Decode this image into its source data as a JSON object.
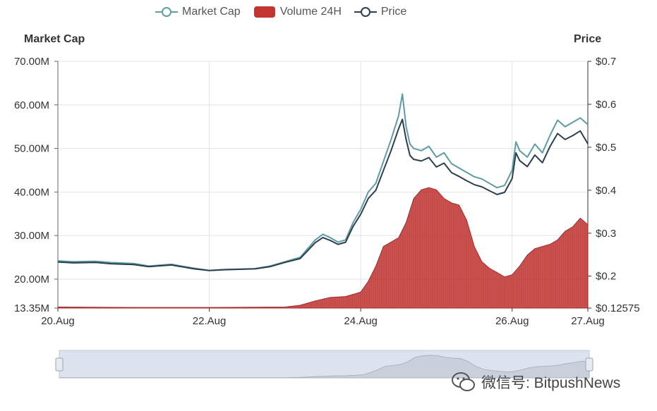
{
  "legend": {
    "market_cap": "Market Cap",
    "volume": "Volume 24H",
    "price": "Price"
  },
  "colors": {
    "market_cap": "#5e9ca4",
    "price": "#2c3e50",
    "volume": "#c23531",
    "grid": "#dfe3ea",
    "zoom_bg": "#dde3ee"
  },
  "watermark": "微信号: BitpushNews",
  "chart_data": {
    "type": "line",
    "title": "",
    "left_axis": {
      "label": "Market Cap",
      "ylim": [
        13.35,
        70
      ],
      "ticks": [
        "13.35M",
        "20.00M",
        "30.00M",
        "40.00M",
        "50.00M",
        "60.00M",
        "70.00M"
      ],
      "tick_values": [
        13.35,
        20,
        30,
        40,
        50,
        60,
        70
      ]
    },
    "right_axis": {
      "label": "Price",
      "ylim": [
        0.12575,
        0.7
      ],
      "ticks": [
        "$0.12575",
        "$0.2",
        "$0.3",
        "$0.4",
        "$0.5",
        "$0.6",
        "$0.7"
      ],
      "tick_values": [
        0.12575,
        0.2,
        0.3,
        0.4,
        0.5,
        0.6,
        0.7
      ]
    },
    "x_axis": {
      "ticks": [
        "20.Aug",
        "22.Aug",
        "24.Aug",
        "26.Aug",
        "27.Aug"
      ],
      "tick_days": [
        0,
        2,
        4,
        6,
        7
      ],
      "xlim": [
        0,
        7
      ]
    },
    "grid": true,
    "legend_position": "top-center",
    "series": [
      {
        "name": "Market Cap",
        "axis": "left",
        "x": [
          0,
          0.2,
          0.5,
          0.7,
          1.0,
          1.2,
          1.5,
          1.8,
          2.0,
          2.2,
          2.4,
          2.6,
          2.8,
          3.0,
          3.2,
          3.4,
          3.5,
          3.6,
          3.7,
          3.8,
          3.9,
          4.0,
          4.1,
          4.2,
          4.3,
          4.4,
          4.5,
          4.55,
          4.6,
          4.65,
          4.7,
          4.8,
          4.9,
          5.0,
          5.1,
          5.2,
          5.3,
          5.4,
          5.5,
          5.6,
          5.7,
          5.8,
          5.9,
          6.0,
          6.05,
          6.1,
          6.2,
          6.3,
          6.4,
          6.5,
          6.6,
          6.7,
          6.8,
          6.9,
          7.0
        ],
        "values": [
          24.2,
          24.0,
          24.1,
          23.8,
          23.6,
          23.0,
          23.4,
          22.5,
          22.0,
          22.2,
          22.3,
          22.4,
          23.0,
          24.0,
          25.0,
          29.0,
          30.3,
          29.5,
          28.5,
          29.0,
          33.0,
          36.0,
          40.0,
          42.0,
          47.0,
          52.0,
          57.5,
          62.5,
          55.0,
          51.0,
          50.0,
          49.5,
          50.5,
          48.0,
          49.0,
          46.5,
          45.5,
          44.5,
          43.5,
          43.0,
          42.0,
          41.0,
          41.5,
          45.0,
          51.5,
          49.5,
          48.0,
          51.0,
          49.0,
          53.0,
          56.5,
          55.0,
          56.0,
          57.0,
          55.5
        ]
      },
      {
        "name": "Price",
        "axis": "right",
        "x": [
          0,
          0.2,
          0.5,
          0.7,
          1.0,
          1.2,
          1.5,
          1.8,
          2.0,
          2.2,
          2.4,
          2.6,
          2.8,
          3.0,
          3.2,
          3.4,
          3.5,
          3.6,
          3.7,
          3.8,
          3.9,
          4.0,
          4.1,
          4.2,
          4.3,
          4.4,
          4.5,
          4.55,
          4.6,
          4.65,
          4.7,
          4.8,
          4.9,
          5.0,
          5.1,
          5.2,
          5.3,
          5.4,
          5.5,
          5.6,
          5.7,
          5.8,
          5.9,
          6.0,
          6.05,
          6.1,
          6.2,
          6.3,
          6.4,
          6.5,
          6.6,
          6.7,
          6.8,
          6.9,
          7.0
        ],
        "values": [
          0.233,
          0.231,
          0.232,
          0.229,
          0.227,
          0.222,
          0.226,
          0.217,
          0.213,
          0.215,
          0.216,
          0.217,
          0.222,
          0.232,
          0.241,
          0.278,
          0.29,
          0.283,
          0.274,
          0.279,
          0.316,
          0.344,
          0.381,
          0.4,
          0.446,
          0.492,
          0.543,
          0.565,
          0.518,
          0.481,
          0.472,
          0.468,
          0.476,
          0.454,
          0.463,
          0.441,
          0.432,
          0.422,
          0.413,
          0.408,
          0.399,
          0.39,
          0.395,
          0.427,
          0.487,
          0.469,
          0.455,
          0.482,
          0.464,
          0.502,
          0.532,
          0.518,
          0.527,
          0.538,
          0.508
        ]
      },
      {
        "name": "Volume 24H",
        "axis": "left",
        "type": "area",
        "x": [
          0,
          1,
          2,
          3,
          3.2,
          3.4,
          3.6,
          3.8,
          4.0,
          4.1,
          4.2,
          4.3,
          4.4,
          4.5,
          4.6,
          4.7,
          4.8,
          4.9,
          5.0,
          5.1,
          5.2,
          5.3,
          5.4,
          5.5,
          5.6,
          5.7,
          5.8,
          5.9,
          6.0,
          6.1,
          6.2,
          6.3,
          6.4,
          6.5,
          6.6,
          6.7,
          6.8,
          6.9,
          7.0
        ],
        "values": [
          13.6,
          13.5,
          13.5,
          13.6,
          14.0,
          15.0,
          15.8,
          16.0,
          17.0,
          19.5,
          23.0,
          27.5,
          28.5,
          29.5,
          33.0,
          38.5,
          40.5,
          41.0,
          40.5,
          38.5,
          37.5,
          37.0,
          33.5,
          27.5,
          24.0,
          22.5,
          21.5,
          20.5,
          21.0,
          23.0,
          25.5,
          27.0,
          27.5,
          28.0,
          29.0,
          31.0,
          32.0,
          34.0,
          32.5
        ]
      }
    ]
  }
}
